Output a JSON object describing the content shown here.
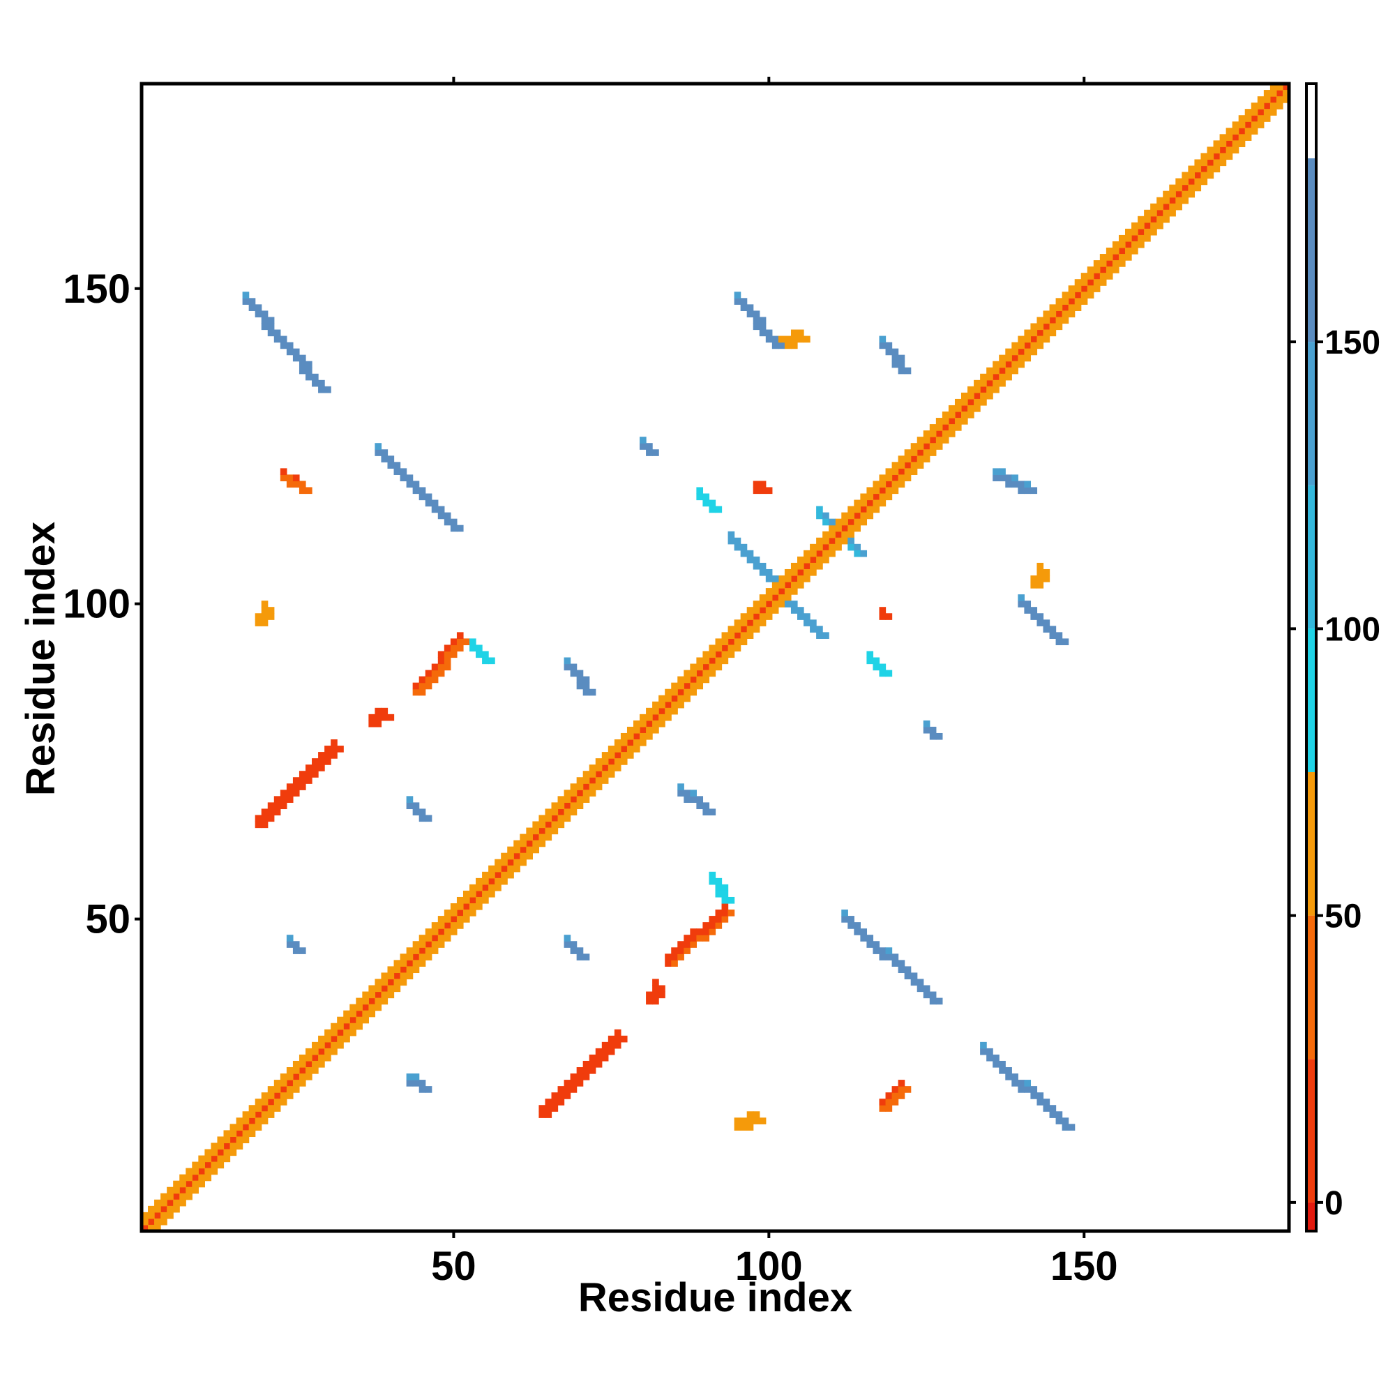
{
  "chart_data": {
    "type": "heatmap",
    "title": "",
    "xlabel": "Residue index",
    "ylabel": "Residue index",
    "xlim": [
      1,
      182
    ],
    "ylim": [
      1,
      182
    ],
    "x_ticks": [
      50,
      100,
      150
    ],
    "y_ticks": [
      50,
      100,
      150
    ],
    "x_tick_labels": [
      "50",
      "100",
      "150"
    ],
    "y_tick_labels": [
      "50",
      "100",
      "150"
    ],
    "grid": false,
    "colorbar": {
      "ticks": [
        0,
        50,
        100,
        150
      ],
      "tick_labels": [
        "0",
        "50",
        "100",
        "150"
      ],
      "range": [
        -5,
        195
      ],
      "bins": [
        {
          "from": -5,
          "to": 0,
          "color": "#e31a0e"
        },
        {
          "from": 0,
          "to": 25,
          "color": "#f03c0c"
        },
        {
          "from": 25,
          "to": 50,
          "color": "#f56a0a"
        },
        {
          "from": 50,
          "to": 75,
          "color": "#f59a0a"
        },
        {
          "from": 75,
          "to": 100,
          "color": "#1fd3e6"
        },
        {
          "from": 100,
          "to": 125,
          "color": "#33b8dc"
        },
        {
          "from": 125,
          "to": 150,
          "color": "#4aa0d0"
        },
        {
          "from": 150,
          "to": 182,
          "color": "#5a8cc0"
        },
        {
          "from": 182,
          "to": 195,
          "color": "#ffffff"
        }
      ]
    },
    "features": [
      {
        "kind": "diagonal",
        "from": [
          1,
          1
        ],
        "to": [
          182,
          182
        ],
        "value": 20
      },
      {
        "kind": "diagonal-side",
        "from": [
          1,
          1
        ],
        "to": [
          182,
          182
        ],
        "value": 50
      },
      {
        "kind": "segment",
        "from": [
          17,
          148
        ],
        "to": [
          29,
          134
        ],
        "value": 150
      },
      {
        "kind": "segment",
        "from": [
          134,
          29
        ],
        "to": [
          147,
          17
        ],
        "value": 150
      },
      {
        "kind": "segment",
        "from": [
          38,
          124
        ],
        "to": [
          50,
          112
        ],
        "value": 150
      },
      {
        "kind": "segment",
        "from": [
          112,
          50
        ],
        "to": [
          126,
          37
        ],
        "value": 150
      },
      {
        "kind": "segment",
        "from": [
          95,
          148
        ],
        "to": [
          101,
          141
        ],
        "value": 150
      },
      {
        "kind": "segment",
        "from": [
          140,
          100
        ],
        "to": [
          146,
          94
        ],
        "value": 150
      },
      {
        "kind": "segment",
        "from": [
          94,
          110
        ],
        "to": [
          108,
          95
        ],
        "value": 130
      },
      {
        "kind": "segment",
        "from": [
          108,
          114
        ],
        "to": [
          114,
          108
        ],
        "value": 120
      },
      {
        "kind": "segment",
        "from": [
          23,
          120
        ],
        "to": [
          26,
          118
        ],
        "value": 25
      },
      {
        "kind": "segment",
        "from": [
          44,
          86
        ],
        "to": [
          51,
          94
        ],
        "value": 25
      },
      {
        "kind": "segment",
        "from": [
          19,
          65
        ],
        "to": [
          31,
          77
        ],
        "value": 15
      },
      {
        "kind": "segment",
        "from": [
          84,
          43
        ],
        "to": [
          93,
          51
        ],
        "value": 20
      },
      {
        "kind": "segment",
        "from": [
          64,
          19
        ],
        "to": [
          76,
          31
        ],
        "value": 15
      },
      {
        "kind": "segment",
        "from": [
          118,
          20
        ],
        "to": [
          121,
          23
        ],
        "value": 25
      },
      {
        "kind": "segment",
        "from": [
          95,
          17
        ],
        "to": [
          98,
          18
        ],
        "value": 60
      },
      {
        "kind": "segment",
        "from": [
          19,
          97
        ],
        "to": [
          20,
          99
        ],
        "value": 60
      },
      {
        "kind": "segment",
        "from": [
          68,
          90
        ],
        "to": [
          71,
          86
        ],
        "value": 150
      },
      {
        "kind": "segment",
        "from": [
          86,
          70
        ],
        "to": [
          90,
          67
        ],
        "value": 150
      },
      {
        "kind": "segment",
        "from": [
          68,
          46
        ],
        "to": [
          70,
          44
        ],
        "value": 150
      },
      {
        "kind": "segment",
        "from": [
          43,
          68
        ],
        "to": [
          45,
          66
        ],
        "value": 150
      },
      {
        "kind": "segment",
        "from": [
          43,
          24
        ],
        "to": [
          45,
          23
        ],
        "value": 150
      },
      {
        "kind": "segment",
        "from": [
          24,
          46
        ],
        "to": [
          25,
          45
        ],
        "value": 150
      },
      {
        "kind": "segment",
        "from": [
          118,
          141
        ],
        "to": [
          121,
          137
        ],
        "value": 150
      },
      {
        "kind": "segment",
        "from": [
          136,
          120
        ],
        "to": [
          141,
          118
        ],
        "value": 150
      },
      {
        "kind": "segment",
        "from": [
          80,
          125
        ],
        "to": [
          81,
          124
        ],
        "value": 150
      },
      {
        "kind": "segment",
        "from": [
          125,
          80
        ],
        "to": [
          126,
          79
        ],
        "value": 150
      },
      {
        "kind": "segment",
        "from": [
          89,
          117
        ],
        "to": [
          91,
          115
        ],
        "value": 90
      },
      {
        "kind": "segment",
        "from": [
          116,
          91
        ],
        "to": [
          118,
          89
        ],
        "value": 90
      },
      {
        "kind": "segment",
        "from": [
          91,
          56
        ],
        "to": [
          93,
          53
        ],
        "value": 90
      },
      {
        "kind": "segment",
        "from": [
          53,
          93
        ],
        "to": [
          55,
          91
        ],
        "value": 90
      },
      {
        "kind": "segment",
        "from": [
          102,
          141
        ],
        "to": [
          105,
          142
        ],
        "value": 60
      },
      {
        "kind": "segment",
        "from": [
          142,
          103
        ],
        "to": [
          143,
          105
        ],
        "value": 60
      },
      {
        "kind": "segment",
        "from": [
          81,
          37
        ],
        "to": [
          82,
          39
        ],
        "value": 10
      },
      {
        "kind": "segment",
        "from": [
          37,
          81
        ],
        "to": [
          39,
          82
        ],
        "value": 10
      },
      {
        "kind": "segment",
        "from": [
          98,
          118
        ],
        "to": [
          99,
          118
        ],
        "value": 10
      },
      {
        "kind": "segment",
        "from": [
          118,
          98
        ],
        "to": [
          118,
          98
        ],
        "value": 10
      }
    ]
  }
}
